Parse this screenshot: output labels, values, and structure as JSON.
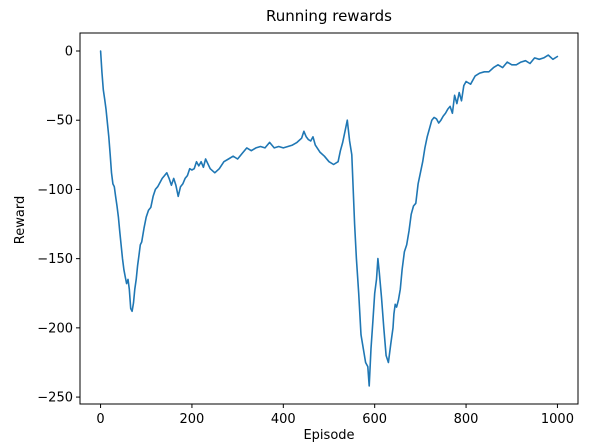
{
  "chart_data": {
    "type": "line",
    "title": "Running rewards",
    "xlabel": "Episode",
    "ylabel": "Reward",
    "xlim": [
      -45,
      1045
    ],
    "ylim": [
      -255,
      13
    ],
    "xticks": [
      0,
      200,
      400,
      600,
      800,
      1000
    ],
    "yticks": [
      0,
      -50,
      -100,
      -150,
      -200,
      -250
    ],
    "xtick_labels": [
      "0",
      "200",
      "400",
      "600",
      "800",
      "1000"
    ],
    "ytick_labels": [
      "0",
      "−50",
      "−100",
      "−150",
      "−200",
      "−250"
    ],
    "grid": false,
    "colors": {
      "line": "#1f77b4",
      "axes": "#000000"
    },
    "series": [
      {
        "x": [
          0,
          3,
          6,
          9,
          12,
          15,
          18,
          21,
          24,
          27,
          30,
          33,
          36,
          39,
          42,
          45,
          48,
          51,
          54,
          57,
          60,
          63,
          66,
          69,
          72,
          75,
          78,
          81,
          84,
          87,
          90,
          95,
          100,
          105,
          110,
          115,
          120,
          125,
          130,
          135,
          140,
          145,
          150,
          155,
          160,
          165,
          170,
          175,
          180,
          185,
          190,
          195,
          200,
          205,
          210,
          215,
          220,
          225,
          230,
          240,
          250,
          260,
          270,
          280,
          290,
          300,
          310,
          320,
          330,
          340,
          350,
          360,
          370,
          380,
          390,
          400,
          410,
          420,
          430,
          440,
          445,
          450,
          455,
          460,
          465,
          470,
          480,
          490,
          500,
          510,
          520,
          525,
          530,
          535,
          540,
          545,
          550,
          553,
          556,
          560,
          565,
          570,
          575,
          580,
          585,
          588,
          592,
          596,
          600,
          604,
          607,
          610,
          615,
          620,
          625,
          630,
          635,
          640,
          642,
          645,
          648,
          652,
          656,
          660,
          665,
          670,
          675,
          680,
          685,
          690,
          695,
          700,
          705,
          710,
          715,
          720,
          725,
          730,
          735,
          740,
          745,
          750,
          755,
          760,
          765,
          770,
          775,
          780,
          785,
          790,
          795,
          800,
          810,
          820,
          830,
          840,
          850,
          860,
          870,
          880,
          890,
          900,
          910,
          920,
          930,
          940,
          950,
          960,
          970,
          980,
          990,
          1000
        ],
        "y": [
          0,
          -15,
          -28,
          -35,
          -42,
          -52,
          -62,
          -75,
          -88,
          -96,
          -98,
          -105,
          -112,
          -120,
          -130,
          -140,
          -150,
          -158,
          -163,
          -168,
          -165,
          -172,
          -186,
          -188,
          -182,
          -172,
          -165,
          -155,
          -148,
          -140,
          -138,
          -128,
          -120,
          -115,
          -113,
          -105,
          -100,
          -98,
          -95,
          -92,
          -90,
          -88,
          -92,
          -97,
          -92,
          -97,
          -105,
          -98,
          -96,
          -92,
          -90,
          -85,
          -86,
          -85,
          -80,
          -83,
          -80,
          -84,
          -78,
          -85,
          -88,
          -85,
          -80,
          -78,
          -76,
          -78,
          -74,
          -70,
          -72,
          -70,
          -69,
          -70,
          -66,
          -70,
          -69,
          -70,
          -69,
          -68,
          -66,
          -63,
          -58,
          -62,
          -64,
          -65,
          -62,
          -68,
          -73,
          -76,
          -80,
          -82,
          -80,
          -72,
          -66,
          -58,
          -50,
          -65,
          -75,
          -100,
          -125,
          -150,
          -175,
          -205,
          -215,
          -225,
          -228,
          -242,
          -215,
          -195,
          -175,
          -165,
          -150,
          -160,
          -178,
          -200,
          -220,
          -225,
          -212,
          -200,
          -190,
          -183,
          -185,
          -180,
          -172,
          -158,
          -145,
          -140,
          -130,
          -118,
          -112,
          -110,
          -96,
          -88,
          -80,
          -70,
          -62,
          -56,
          -50,
          -48,
          -49,
          -52,
          -50,
          -47,
          -45,
          -42,
          -40,
          -45,
          -32,
          -38,
          -30,
          -36,
          -25,
          -22,
          -24,
          -18,
          -16,
          -15,
          -15,
          -12,
          -10,
          -12,
          -8,
          -10,
          -10,
          -8,
          -7,
          -9,
          -5,
          -6,
          -5,
          -3,
          -6,
          -4
        ]
      }
    ]
  }
}
